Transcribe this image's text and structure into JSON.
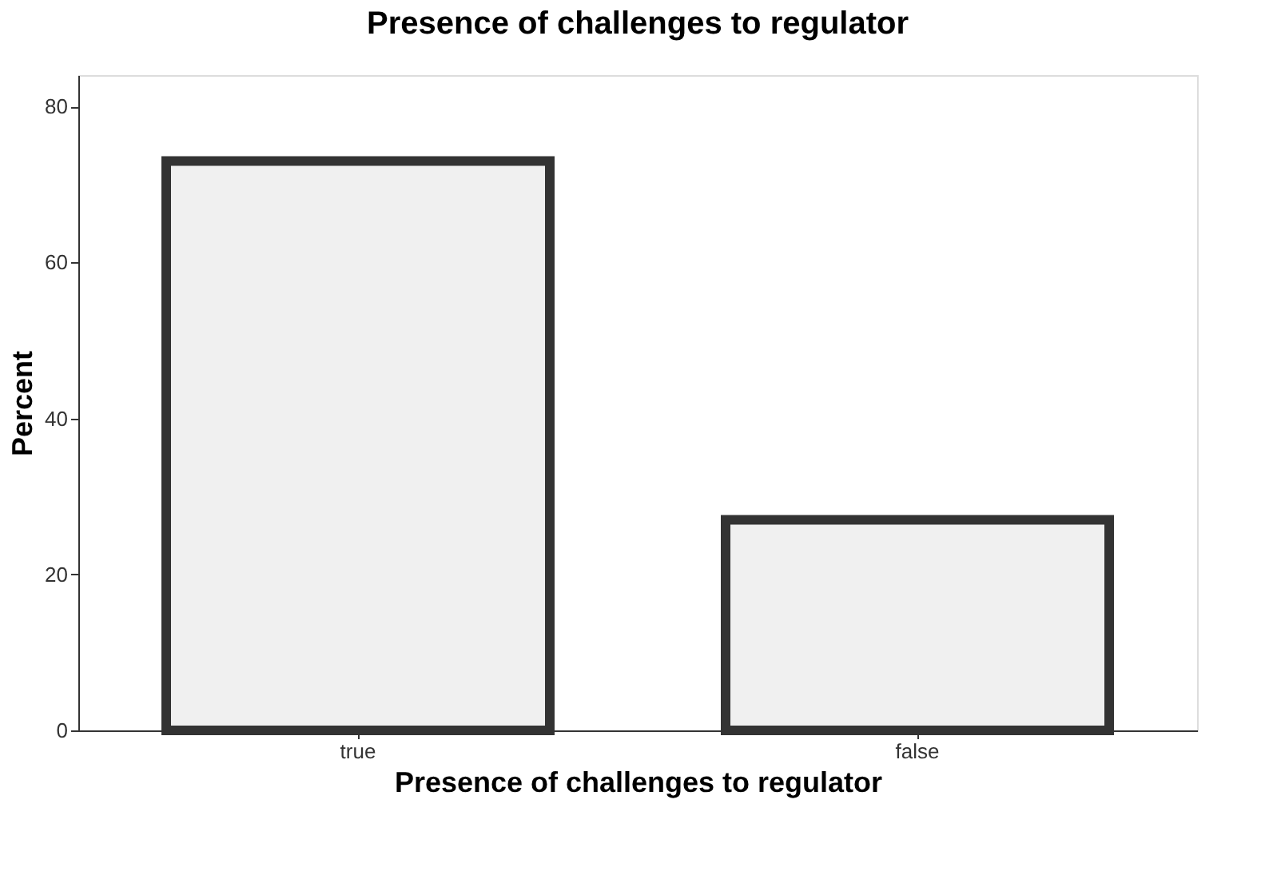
{
  "chart_data": {
    "type": "bar",
    "title": "Presence of challenges to regulator",
    "xlabel": "Presence of challenges to regulator",
    "ylabel": "Percent",
    "categories": [
      "true",
      "false"
    ],
    "values": [
      73,
      27
    ],
    "color": "#f0f0f0",
    "ylim": [
      0,
      84
    ],
    "yticks": [
      0,
      20,
      40,
      60,
      80
    ],
    "grid": false
  }
}
